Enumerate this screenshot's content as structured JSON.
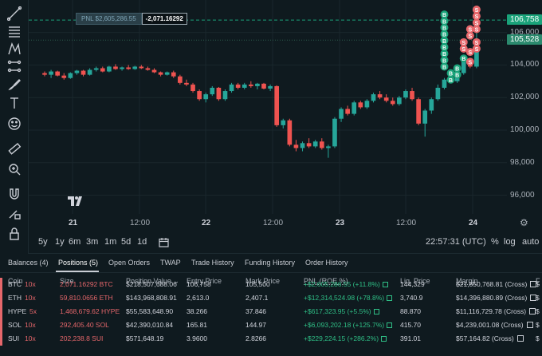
{
  "chart": {
    "price_axis": [
      "106,000",
      "104,000",
      "102,000",
      "100,000",
      "98,000",
      "96,000"
    ],
    "price_tags": {
      "top": "106,758",
      "current": "105,528"
    },
    "time_axis": [
      {
        "label": "21",
        "bold": true
      },
      {
        "label": "12:00",
        "bold": false
      },
      {
        "label": "22",
        "bold": true
      },
      {
        "label": "12:00",
        "bold": false
      },
      {
        "label": "23",
        "bold": true
      },
      {
        "label": "12:00",
        "bold": false
      },
      {
        "label": "24",
        "bold": true
      }
    ],
    "pnl_label": "PNL $2,605,286.55",
    "pnl_qty": "-2,071.16292",
    "ylim": [
      95000,
      107500
    ],
    "candles": [
      [
        103500,
        103600,
        103300,
        103400
      ],
      [
        103400,
        103700,
        103200,
        103600
      ],
      [
        103600,
        103650,
        103300,
        103350
      ],
      [
        103350,
        103500,
        103100,
        103200
      ],
      [
        103200,
        103550,
        103150,
        103500
      ],
      [
        103500,
        103700,
        103400,
        103650
      ],
      [
        103650,
        103700,
        103300,
        103400
      ],
      [
        103400,
        103800,
        103350,
        103700
      ],
      [
        103700,
        103900,
        103600,
        103800
      ],
      [
        103800,
        103900,
        103550,
        103600
      ],
      [
        103600,
        103950,
        103550,
        103900
      ],
      [
        103900,
        104050,
        103700,
        103750
      ],
      [
        103750,
        103900,
        103650,
        103850
      ],
      [
        103850,
        104000,
        103700,
        103750
      ],
      [
        103750,
        103950,
        103700,
        103900
      ],
      [
        103900,
        104000,
        103750,
        103800
      ],
      [
        103800,
        103900,
        103650,
        103700
      ],
      [
        103700,
        103800,
        103500,
        103550
      ],
      [
        103550,
        103600,
        103300,
        103400
      ],
      [
        103400,
        103600,
        103350,
        103550
      ],
      [
        103550,
        103650,
        103200,
        103300
      ],
      [
        103300,
        103400,
        102800,
        102900
      ],
      [
        102900,
        103100,
        102700,
        102800
      ],
      [
        102800,
        102900,
        102300,
        102400
      ],
      [
        102400,
        102500,
        101800,
        101900
      ],
      [
        101900,
        102300,
        101700,
        102200
      ],
      [
        102200,
        102700,
        102100,
        102600
      ],
      [
        102600,
        102650,
        101800,
        101900
      ],
      [
        101900,
        102500,
        101800,
        102400
      ],
      [
        102400,
        102900,
        102300,
        102800
      ],
      [
        102800,
        102900,
        102500,
        102600
      ],
      [
        102600,
        102900,
        102500,
        102800
      ],
      [
        102800,
        103000,
        102600,
        102700
      ],
      [
        102700,
        102900,
        102500,
        102850
      ],
      [
        102850,
        102900,
        102500,
        102550
      ],
      [
        102550,
        102800,
        102400,
        102700
      ],
      [
        102700,
        102750,
        100200,
        100300
      ],
      [
        100300,
        100700,
        100100,
        100600
      ],
      [
        100600,
        100700,
        99000,
        99100
      ],
      [
        99100,
        99400,
        98700,
        98900
      ],
      [
        98900,
        99300,
        98700,
        99200
      ],
      [
        99200,
        99500,
        98900,
        99000
      ],
      [
        99000,
        99400,
        98900,
        99300
      ],
      [
        99300,
        99500,
        98800,
        98900
      ],
      [
        98900,
        99100,
        98300,
        99000
      ],
      [
        99000,
        100800,
        98900,
        100700
      ],
      [
        100700,
        101400,
        100500,
        101300
      ],
      [
        101300,
        101500,
        100900,
        101000
      ],
      [
        101000,
        101800,
        100900,
        101700
      ],
      [
        101700,
        101800,
        101300,
        101400
      ],
      [
        101400,
        101900,
        101300,
        101800
      ],
      [
        101800,
        102300,
        101700,
        102200
      ],
      [
        102200,
        102400,
        101900,
        102000
      ],
      [
        102000,
        102200,
        101700,
        101800
      ],
      [
        101800,
        102000,
        101500,
        101600
      ],
      [
        101600,
        102100,
        101500,
        102000
      ],
      [
        102000,
        102500,
        101900,
        102400
      ],
      [
        102400,
        102600,
        101800,
        101900
      ],
      [
        101900,
        102000,
        100300,
        100400
      ],
      [
        100400,
        101300,
        99600,
        101200
      ],
      [
        101200,
        102000,
        101000,
        101900
      ],
      [
        101900,
        102800,
        101800,
        102600
      ],
      [
        102600,
        103200,
        102500,
        103100
      ],
      [
        103100,
        103300,
        102900,
        103000
      ],
      [
        103000,
        103600,
        102900,
        103500
      ],
      [
        103500,
        104300,
        103400,
        104200
      ],
      [
        104200,
        104400,
        103800,
        103900
      ],
      [
        103900,
        106100,
        103800,
        105500
      ]
    ],
    "marks": [
      {
        "letter": "B",
        "color": "#1aa37a",
        "ci": 62,
        "price": 103900
      },
      {
        "letter": "B",
        "color": "#1aa37a",
        "ci": 62,
        "price": 104300
      },
      {
        "letter": "B",
        "color": "#1aa37a",
        "ci": 62,
        "price": 104700
      },
      {
        "letter": "B",
        "color": "#1aa37a",
        "ci": 62,
        "price": 105100
      },
      {
        "letter": "B",
        "color": "#1aa37a",
        "ci": 62,
        "price": 105500
      },
      {
        "letter": "B",
        "color": "#1aa37a",
        "ci": 62,
        "price": 105900
      },
      {
        "letter": "B",
        "color": "#1aa37a",
        "ci": 62,
        "price": 106300
      },
      {
        "letter": "B",
        "color": "#1aa37a",
        "ci": 62,
        "price": 106700
      },
      {
        "letter": "B",
        "color": "#1aa37a",
        "ci": 62,
        "price": 107100
      },
      {
        "letter": "B",
        "color": "#1aa37a",
        "ci": 63,
        "price": 103500
      },
      {
        "letter": "B",
        "color": "#1aa37a",
        "ci": 63,
        "price": 103100
      },
      {
        "letter": "B",
        "color": "#1aa37a",
        "ci": 64,
        "price": 103800
      },
      {
        "letter": "B",
        "color": "#1aa37a",
        "ci": 64,
        "price": 103400
      },
      {
        "letter": "B",
        "color": "#1aa37a",
        "ci": 65,
        "price": 104400
      },
      {
        "letter": "S",
        "color": "#e6676b",
        "ci": 65,
        "price": 105400
      },
      {
        "letter": "S",
        "color": "#e6676b",
        "ci": 65,
        "price": 105000
      },
      {
        "letter": "S",
        "color": "#e6676b",
        "ci": 66,
        "price": 105800
      },
      {
        "letter": "S",
        "color": "#e6676b",
        "ci": 66,
        "price": 104800
      },
      {
        "letter": "S",
        "color": "#e6676b",
        "ci": 66,
        "price": 104200
      },
      {
        "letter": "S",
        "color": "#e6676b",
        "ci": 66,
        "price": 106200
      },
      {
        "letter": "S",
        "color": "#e6676b",
        "ci": 67,
        "price": 106600
      },
      {
        "letter": "S",
        "color": "#e6676b",
        "ci": 67,
        "price": 107000
      },
      {
        "letter": "S",
        "color": "#e6676b",
        "ci": 67,
        "price": 107400
      },
      {
        "letter": "S",
        "color": "#e6676b",
        "ci": 67,
        "price": 106200
      },
      {
        "letter": "S",
        "color": "#e6676b",
        "ci": 67,
        "price": 105400
      },
      {
        "letter": "S",
        "color": "#e6676b",
        "ci": 67,
        "price": 105000
      }
    ],
    "colors": {
      "up": "#26a69a",
      "down": "#ef5350",
      "grid": "#1a272c",
      "line": "#1aa37a"
    },
    "icons": [
      "trend-line-icon",
      "horizontal-lines-icon",
      "pattern-icon",
      "path-icon",
      "brush-icon",
      "text-icon",
      "emoji-icon",
      "ruler-icon",
      "zoom-in-icon",
      "magnet-icon",
      "lock-drawing-icon",
      "lock-icon"
    ]
  },
  "timeframes": [
    "5y",
    "1y",
    "6m",
    "3m",
    "1m",
    "5d",
    "1d"
  ],
  "clock": "22:57:31 (UTC)",
  "axis_options": [
    "%",
    "log",
    "auto"
  ],
  "tabs": [
    "Balances (4)",
    "Positions (5)",
    "Open Orders",
    "TWAP",
    "Trade History",
    "Funding History",
    "Order History"
  ],
  "active_tab": "Positions (5)",
  "table": {
    "headers": [
      "Coin",
      "Size",
      "Position Value",
      "Entry Price",
      "Mark Price",
      "PNL (ROE %)",
      "Liq. Price",
      "Margin",
      "F"
    ],
    "rows": [
      {
        "coin": "BTC",
        "lev": "10x",
        "size": "2,071.16292 BTC",
        "value": "$218,507,688.06",
        "entry": "106,758",
        "mark": "105,500",
        "pnl": "+$2,605,286.55 (+11.8%)",
        "liq": "144,329",
        "margin": "$21,850,768.81 (Cross)",
        "f": "$"
      },
      {
        "coin": "ETH",
        "lev": "10x",
        "size": "59,810.0656 ETH",
        "value": "$143,968,808.91",
        "entry": "2,613.0",
        "mark": "2,407.1",
        "pnl": "+$12,314,524.98 (+78.8%)",
        "liq": "3,740.9",
        "margin": "$14,396,880.89 (Cross)",
        "f": "$"
      },
      {
        "coin": "HYPE",
        "lev": "5x",
        "size": "1,468,679.62 HYPE",
        "value": "$55,583,648.90",
        "entry": "38.266",
        "mark": "37.846",
        "pnl": "+$617,323.95 (+5.5%)",
        "liq": "88.870",
        "margin": "$11,116,729.78 (Cross)",
        "f": "$"
      },
      {
        "coin": "SOL",
        "lev": "10x",
        "size": "292,405.40 SOL",
        "value": "$42,390,010.84",
        "entry": "165.81",
        "mark": "144.97",
        "pnl": "+$6,093,202.18 (+125.7%)",
        "liq": "415.70",
        "margin": "$4,239,001.08 (Cross)",
        "f": "$"
      },
      {
        "coin": "SUI",
        "lev": "10x",
        "size": "202,238.8 SUI",
        "value": "$571,648.19",
        "entry": "3.9600",
        "mark": "2.8266",
        "pnl": "+$229,224.15 (+286.2%)",
        "liq": "391.01",
        "margin": "$57,164.82 (Cross)",
        "f": "$"
      }
    ]
  }
}
